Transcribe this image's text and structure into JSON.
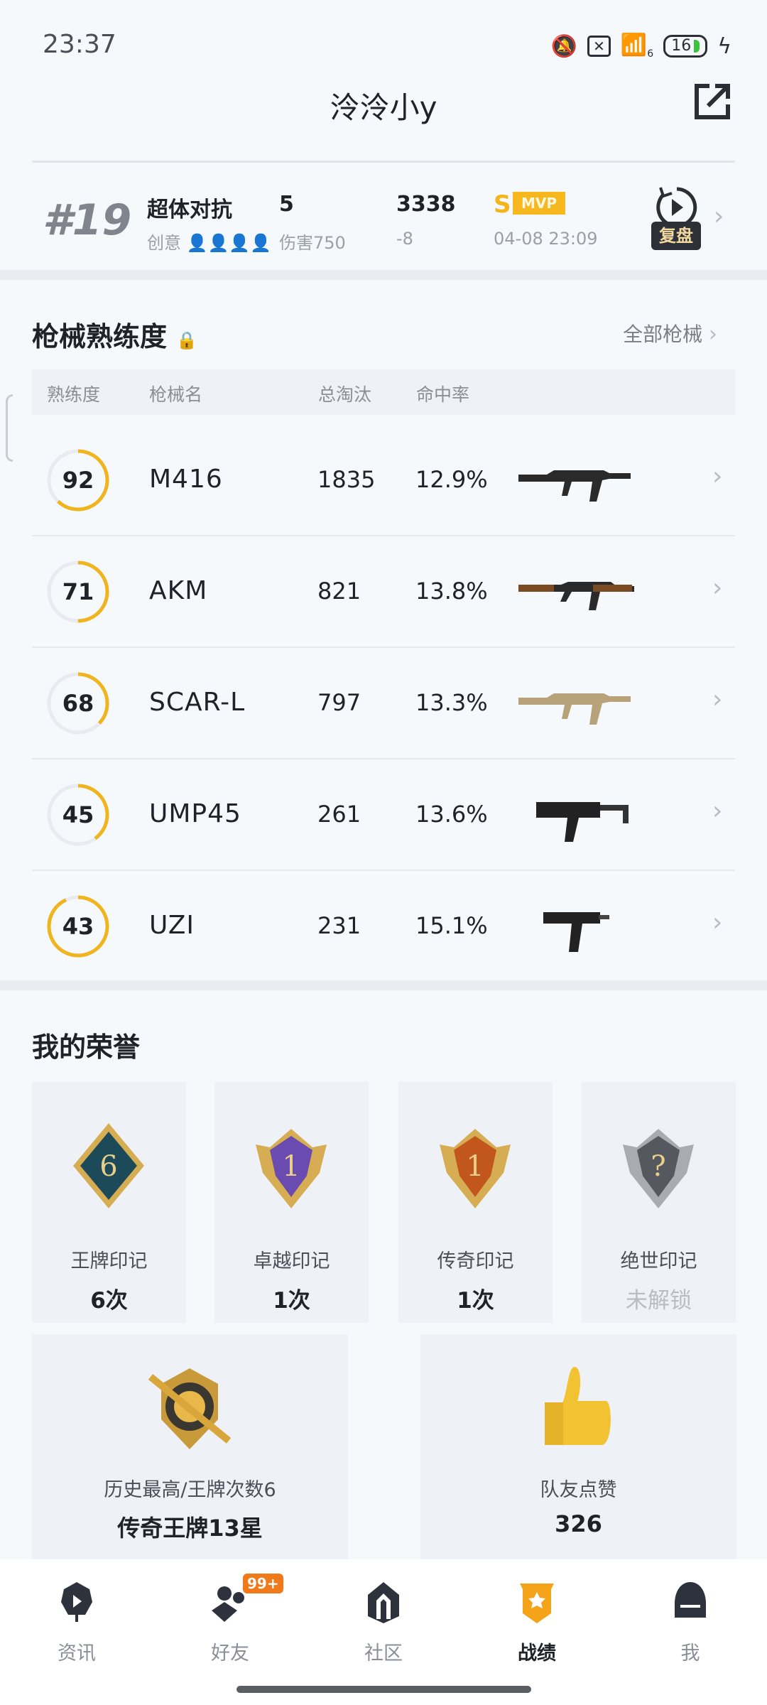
{
  "status": {
    "time": "23:37",
    "wifi_sub": "6",
    "battery": "16"
  },
  "header": {
    "title": "泠泠小y",
    "share_icon": "share-icon"
  },
  "match": {
    "rank": "#19",
    "mode": "超体对抗",
    "sub_mode": "创意",
    "kills": "5",
    "damage": "伤害750",
    "score": "3338",
    "score_change": "-8",
    "grade": "S",
    "mvp": "MVP",
    "time": "04-08 23:09",
    "replay": "复盘"
  },
  "weapons": {
    "title": "枪械熟练度",
    "all_link": "全部枪械",
    "columns": [
      "熟练度",
      "枪械名",
      "总淘汰",
      "命中率"
    ],
    "accent": "#f0b51e",
    "rows": [
      {
        "level": "92",
        "name": "M416",
        "kills": "1835",
        "rate": "12.9%",
        "progress": 0.62
      },
      {
        "level": "71",
        "name": "AKM",
        "kills": "821",
        "rate": "13.8%",
        "progress": 0.5
      },
      {
        "level": "68",
        "name": "SCAR-L",
        "kills": "797",
        "rate": "13.3%",
        "progress": 0.37
      },
      {
        "level": "45",
        "name": "UMP45",
        "kills": "261",
        "rate": "13.6%",
        "progress": 0.4
      },
      {
        "level": "43",
        "name": "UZI",
        "kills": "231",
        "rate": "15.1%",
        "progress": 0.93
      }
    ]
  },
  "honors": {
    "title": "我的荣誉",
    "cards": [
      {
        "label": "王牌印记",
        "value": "6次",
        "badge": "6"
      },
      {
        "label": "卓越印记",
        "value": "1次",
        "badge": "1"
      },
      {
        "label": "传奇印记",
        "value": "1次",
        "badge": "1"
      },
      {
        "label": "绝世印记",
        "value": "未解锁",
        "badge": "?"
      }
    ],
    "best": {
      "label": "历史最高/王牌次数6",
      "value": "传奇王牌13星"
    },
    "likes": {
      "label": "队友点赞",
      "value": "326"
    }
  },
  "tabs": [
    {
      "label": "资讯"
    },
    {
      "label": "好友",
      "badge": "99+"
    },
    {
      "label": "社区"
    },
    {
      "label": "战绩",
      "active": true
    },
    {
      "label": "我"
    }
  ]
}
